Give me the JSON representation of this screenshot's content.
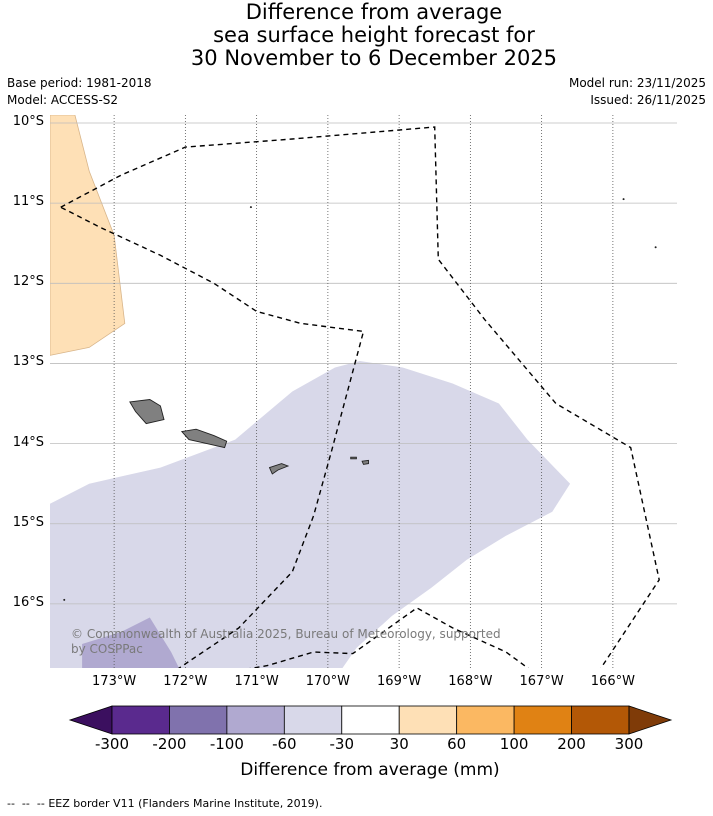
{
  "title": {
    "line1": "Difference from average",
    "line2": "sea surface height forecast for",
    "line3": "30 November to 6 December 2025"
  },
  "meta": {
    "base_period": "Base period: 1981-2018",
    "model": "Model: ACCESS-S2",
    "model_run": "Model run: 23/11/2025",
    "issued": "Issued: 26/11/2025"
  },
  "copyright": "© Commonwealth of Australia 2025, Bureau of Meteorology, supported\nby COSPPac",
  "eez_note": "EEZ border V11 (Flanders Marine Institute, 2019).",
  "chart_data": {
    "type": "heatmap",
    "variable": "Sea surface height difference from average",
    "units": "mm",
    "lat_ticks": [
      "10°S",
      "11°S",
      "12°S",
      "13°S",
      "14°S",
      "15°S",
      "16°S"
    ],
    "lon_ticks": [
      "173°W",
      "172°W",
      "171°W",
      "170°W",
      "169°W",
      "168°W",
      "167°W",
      "166°W"
    ],
    "lat_range": [
      -16.8,
      -9.9
    ],
    "lon_range": [
      -173.9,
      -165.1
    ],
    "colorbar": {
      "label": "Difference from average (mm)",
      "tick_labels": [
        "-300",
        "-200",
        "-100",
        "-60",
        "-30",
        "30",
        "60",
        "100",
        "200",
        "300"
      ],
      "bins": [
        {
          "range": "< -300",
          "color": "#3b0f5f"
        },
        {
          "range": "-300 to -200",
          "color": "#5a2a8e"
        },
        {
          "range": "-200 to -100",
          "color": "#8072ad"
        },
        {
          "range": "-100 to -60",
          "color": "#b0a9d0"
        },
        {
          "range": "-60 to -30",
          "color": "#d8d8e9"
        },
        {
          "range": "-30 to 30",
          "color": "#ffffff"
        },
        {
          "range": "30 to 60",
          "color": "#fee0b6"
        },
        {
          "range": "60 to 100",
          "color": "#fbb862"
        },
        {
          "range": "100 to 200",
          "color": "#e08214"
        },
        {
          "range": "200 to 300",
          "color": "#b35806"
        },
        {
          "range": "> 300",
          "color": "#7f3b08"
        }
      ]
    },
    "regions": [
      {
        "name": "positive-anomaly-northwest",
        "bin": "30 to 60",
        "polygon": [
          [
            -173.9,
            -9.9
          ],
          [
            -173.55,
            -9.9
          ],
          [
            -173.35,
            -10.6
          ],
          [
            -173.0,
            -11.4
          ],
          [
            -172.85,
            -12.5
          ],
          [
            -173.35,
            -12.8
          ],
          [
            -173.9,
            -12.9
          ]
        ]
      },
      {
        "name": "negative-anomaly-central",
        "bin": "-60 to -30",
        "polygon": [
          [
            -173.9,
            -14.75
          ],
          [
            -173.35,
            -14.5
          ],
          [
            -172.35,
            -14.3
          ],
          [
            -171.3,
            -13.95
          ],
          [
            -170.5,
            -13.35
          ],
          [
            -169.9,
            -13.05
          ],
          [
            -169.55,
            -12.97
          ],
          [
            -168.95,
            -13.05
          ],
          [
            -168.25,
            -13.25
          ],
          [
            -167.6,
            -13.5
          ],
          [
            -167.2,
            -13.95
          ],
          [
            -166.6,
            -14.5
          ],
          [
            -166.85,
            -14.85
          ],
          [
            -167.5,
            -15.15
          ],
          [
            -168.05,
            -15.45
          ],
          [
            -168.55,
            -15.8
          ],
          [
            -169.1,
            -16.15
          ],
          [
            -169.6,
            -16.55
          ],
          [
            -169.95,
            -17.0
          ],
          [
            -170.3,
            -17.3
          ],
          [
            -173.9,
            -17.3
          ]
        ]
      },
      {
        "name": "negative-anomaly-southwest",
        "bin": "-100 to -60",
        "polygon": [
          [
            -173.45,
            -17.3
          ],
          [
            -173.45,
            -16.5
          ],
          [
            -172.9,
            -16.35
          ],
          [
            -172.5,
            -16.17
          ],
          [
            -172.2,
            -16.6
          ],
          [
            -171.95,
            -17.05
          ],
          [
            -171.7,
            -17.3
          ]
        ]
      }
    ],
    "islands": [
      {
        "name": "savaii-island",
        "polygon": [
          [
            -172.78,
            -13.48
          ],
          [
            -172.5,
            -13.45
          ],
          [
            -172.35,
            -13.53
          ],
          [
            -172.3,
            -13.7
          ],
          [
            -172.55,
            -13.75
          ],
          [
            -172.7,
            -13.6
          ]
        ]
      },
      {
        "name": "upolu-island",
        "polygon": [
          [
            -172.05,
            -13.85
          ],
          [
            -171.85,
            -13.82
          ],
          [
            -171.6,
            -13.9
          ],
          [
            -171.42,
            -13.97
          ],
          [
            -171.45,
            -14.05
          ],
          [
            -171.7,
            -14.0
          ],
          [
            -171.95,
            -13.95
          ]
        ]
      },
      {
        "name": "tutuila-island",
        "polygon": [
          [
            -170.82,
            -14.3
          ],
          [
            -170.65,
            -14.25
          ],
          [
            -170.56,
            -14.28
          ],
          [
            -170.7,
            -14.33
          ],
          [
            -170.78,
            -14.38
          ]
        ]
      },
      {
        "name": "ofu-olosega-island",
        "polygon": [
          [
            -169.68,
            -14.17
          ],
          [
            -169.6,
            -14.17
          ],
          [
            -169.6,
            -14.19
          ],
          [
            -169.68,
            -14.19
          ]
        ]
      },
      {
        "name": "tau-island",
        "polygon": [
          [
            -169.52,
            -14.22
          ],
          [
            -169.43,
            -14.21
          ],
          [
            -169.43,
            -14.25
          ],
          [
            -169.5,
            -14.26
          ]
        ]
      }
    ],
    "eez_border": [
      [
        -173.75,
        -11.05
      ],
      [
        -172.9,
        -10.65
      ],
      [
        -172.0,
        -10.3
      ],
      [
        -170.5,
        -10.2
      ],
      [
        -168.5,
        -10.05
      ],
      [
        -168.45,
        -11.7
      ],
      [
        -167.8,
        -12.45
      ],
      [
        -166.8,
        -13.5
      ],
      [
        -165.75,
        -14.05
      ],
      [
        -165.35,
        -15.7
      ],
      [
        -166.5,
        -17.25
      ],
      [
        -167.5,
        -16.6
      ],
      [
        -168.25,
        -16.3
      ],
      [
        -168.75,
        -16.05
      ],
      [
        -169.65,
        -16.62
      ],
      [
        -170.2,
        -16.6
      ],
      [
        -170.85,
        -16.77
      ],
      [
        -171.7,
        -16.9
      ],
      [
        -172.22,
        -16.88
      ],
      [
        -171.25,
        -16.3
      ],
      [
        -170.5,
        -15.6
      ],
      [
        -170.2,
        -14.9
      ],
      [
        -169.95,
        -14.1
      ],
      [
        -169.5,
        -12.6
      ],
      [
        -170.38,
        -12.5
      ],
      [
        -171.0,
        -12.35
      ],
      [
        -171.6,
        -12.0
      ],
      [
        -172.35,
        -11.65
      ],
      [
        -173.2,
        -11.3
      ],
      [
        -173.75,
        -11.05
      ]
    ],
    "grid": true
  }
}
